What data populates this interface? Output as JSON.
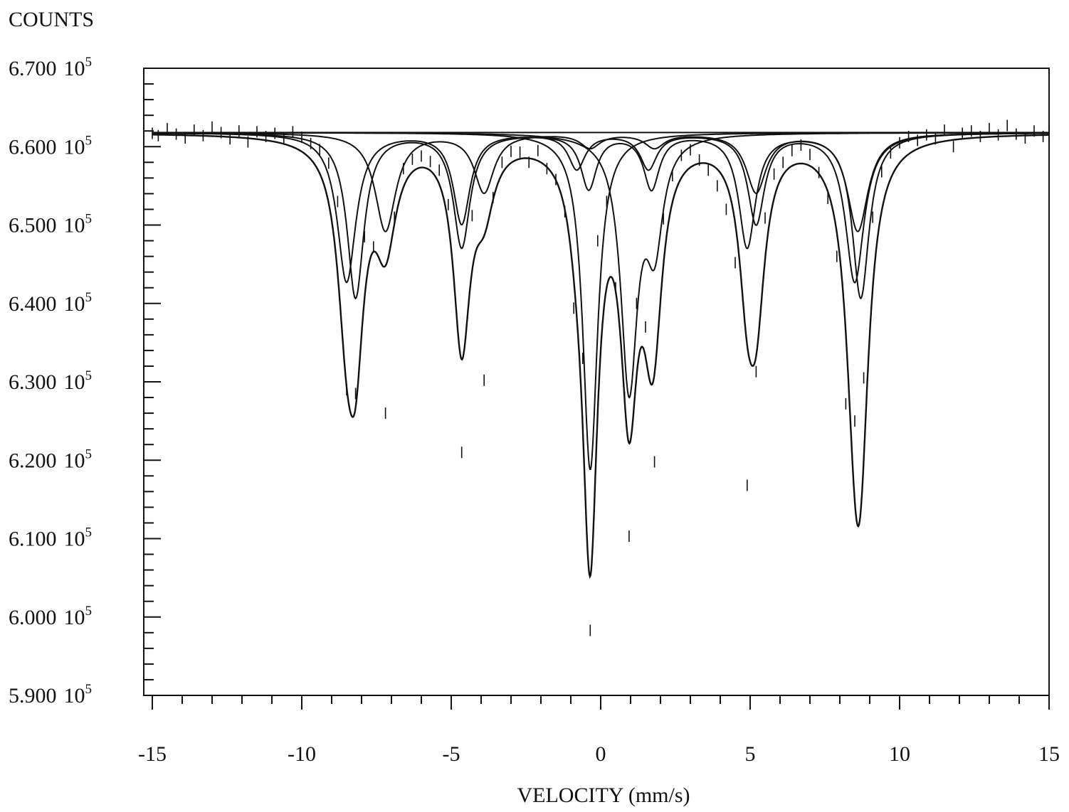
{
  "chart_data": {
    "type": "line",
    "title": "",
    "ylabel": "COUNTS",
    "xlabel": "VELOCITY (mm/s)",
    "xlim": [
      -15,
      15
    ],
    "ylim": [
      590000,
      670000
    ],
    "grid": false,
    "x_ticks": [
      {
        "value": -15,
        "label": "-15"
      },
      {
        "value": -10,
        "label": "-10"
      },
      {
        "value": -5,
        "label": "-5"
      },
      {
        "value": 0,
        "label": "0"
      },
      {
        "value": 5,
        "label": "5"
      },
      {
        "value": 10,
        "label": "10"
      },
      {
        "value": 15,
        "label": "15"
      }
    ],
    "y_ticks": [
      {
        "value": 670000,
        "mantissa": "6.700",
        "base": "10",
        "exp": "5"
      },
      {
        "value": 660000,
        "mantissa": "6.600",
        "base": "10",
        "exp": "5"
      },
      {
        "value": 650000,
        "mantissa": "6.500",
        "base": "10",
        "exp": "5"
      },
      {
        "value": 640000,
        "mantissa": "6.400",
        "base": "10",
        "exp": "5"
      },
      {
        "value": 630000,
        "mantissa": "6.300",
        "base": "10",
        "exp": "5"
      },
      {
        "value": 620000,
        "mantissa": "6.200",
        "base": "10",
        "exp": "5"
      },
      {
        "value": 610000,
        "mantissa": "6.100",
        "base": "10",
        "exp": "5"
      },
      {
        "value": 600000,
        "mantissa": "6.000",
        "base": "10",
        "exp": "5"
      },
      {
        "value": 590000,
        "mantissa": "5.900",
        "base": "10",
        "exp": "5"
      }
    ],
    "baseline": 661800,
    "series": [
      {
        "lines": [
          {
            "x": -8.5,
            "depth": 19000,
            "width": 0.38
          },
          {
            "x": -4.65,
            "depth": 11500,
            "width": 0.34
          },
          {
            "x": -0.8,
            "depth": 4500,
            "width": 0.34
          },
          {
            "x": 1.6,
            "depth": 4500,
            "width": 0.34
          },
          {
            "x": 5.2,
            "depth": 11500,
            "width": 0.34
          },
          {
            "x": 8.5,
            "depth": 19000,
            "width": 0.38
          }
        ]
      },
      {
        "lines": [
          {
            "x": -8.2,
            "depth": 21000,
            "width": 0.34
          },
          {
            "x": -4.65,
            "depth": 14500,
            "width": 0.34
          },
          {
            "x": -0.4,
            "depth": 7000,
            "width": 0.32
          },
          {
            "x": 1.7,
            "depth": 7000,
            "width": 0.32
          },
          {
            "x": 4.9,
            "depth": 14500,
            "width": 0.34
          },
          {
            "x": 8.7,
            "depth": 21000,
            "width": 0.34
          }
        ]
      },
      {
        "lines": [
          {
            "x": -7.2,
            "depth": 12500,
            "width": 0.42
          },
          {
            "x": -3.9,
            "depth": 7500,
            "width": 0.4
          },
          {
            "x": -0.35,
            "depth": 1800,
            "width": 0.4
          },
          {
            "x": 1.8,
            "depth": 1800,
            "width": 0.4
          },
          {
            "x": 5.2,
            "depth": 7500,
            "width": 0.4
          },
          {
            "x": 8.6,
            "depth": 12500,
            "width": 0.42
          }
        ]
      },
      {
        "lines": [
          {
            "x": -0.35,
            "depth": 43000,
            "width": 0.3
          }
        ]
      },
      {
        "lines": [
          {
            "x": 0.95,
            "depth": 32000,
            "width": 0.34
          },
          {
            "x": 1.8,
            "depth": 13000,
            "width": 0.34
          }
        ]
      }
    ],
    "scatter": [
      {
        "x": -15.0,
        "y": 661700
      },
      {
        "x": -14.8,
        "y": 661400
      },
      {
        "x": -14.5,
        "y": 662300
      },
      {
        "x": -14.2,
        "y": 661600
      },
      {
        "x": -13.9,
        "y": 661100
      },
      {
        "x": -13.6,
        "y": 662100
      },
      {
        "x": -13.3,
        "y": 661400
      },
      {
        "x": -13.0,
        "y": 662500
      },
      {
        "x": -12.7,
        "y": 661800
      },
      {
        "x": -12.4,
        "y": 661000
      },
      {
        "x": -12.1,
        "y": 662000
      },
      {
        "x": -11.8,
        "y": 660600
      },
      {
        "x": -11.5,
        "y": 661900
      },
      {
        "x": -11.2,
        "y": 661300
      },
      {
        "x": -10.9,
        "y": 661700
      },
      {
        "x": -10.6,
        "y": 661000
      },
      {
        "x": -10.3,
        "y": 661900
      },
      {
        "x": -10.0,
        "y": 661200
      },
      {
        "x": -9.7,
        "y": 660400
      },
      {
        "x": -9.4,
        "y": 659600
      },
      {
        "x": -9.1,
        "y": 657900
      },
      {
        "x": -8.8,
        "y": 653000
      },
      {
        "x": -8.5,
        "y": 629000
      },
      {
        "x": -8.2,
        "y": 628500
      },
      {
        "x": -7.9,
        "y": 648500
      },
      {
        "x": -7.6,
        "y": 647200
      },
      {
        "x": -7.2,
        "y": 626000
      },
      {
        "x": -6.9,
        "y": 651000
      },
      {
        "x": -6.6,
        "y": 657200
      },
      {
        "x": -6.3,
        "y": 658400
      },
      {
        "x": -6.0,
        "y": 658800
      },
      {
        "x": -5.7,
        "y": 658100
      },
      {
        "x": -5.4,
        "y": 657000
      },
      {
        "x": -5.1,
        "y": 652600
      },
      {
        "x": -4.65,
        "y": 621000
      },
      {
        "x": -4.3,
        "y": 651200
      },
      {
        "x": -3.9,
        "y": 630200
      },
      {
        "x": -3.6,
        "y": 653500
      },
      {
        "x": -3.3,
        "y": 658000
      },
      {
        "x": -3.0,
        "y": 659400
      },
      {
        "x": -2.7,
        "y": 659300
      },
      {
        "x": -2.4,
        "y": 658000
      },
      {
        "x": -2.1,
        "y": 659500
      },
      {
        "x": -1.8,
        "y": 657200
      },
      {
        "x": -1.5,
        "y": 655800
      },
      {
        "x": -1.2,
        "y": 651700
      },
      {
        "x": -0.9,
        "y": 639400
      },
      {
        "x": -0.6,
        "y": 633000
      },
      {
        "x": -0.35,
        "y": 598300
      },
      {
        "x": -0.1,
        "y": 648000
      },
      {
        "x": 0.2,
        "y": 653000
      },
      {
        "x": 0.5,
        "y": 642000
      },
      {
        "x": 0.8,
        "y": 628000
      },
      {
        "x": 0.95,
        "y": 610300
      },
      {
        "x": 1.2,
        "y": 640000
      },
      {
        "x": 1.5,
        "y": 637000
      },
      {
        "x": 1.8,
        "y": 619800
      },
      {
        "x": 2.1,
        "y": 650800
      },
      {
        "x": 2.4,
        "y": 656300
      },
      {
        "x": 2.7,
        "y": 658900
      },
      {
        "x": 3.0,
        "y": 659600
      },
      {
        "x": 3.3,
        "y": 658300
      },
      {
        "x": 3.6,
        "y": 657000
      },
      {
        "x": 3.9,
        "y": 655000
      },
      {
        "x": 4.2,
        "y": 652000
      },
      {
        "x": 4.5,
        "y": 645200
      },
      {
        "x": 4.9,
        "y": 616800
      },
      {
        "x": 5.2,
        "y": 631300
      },
      {
        "x": 5.5,
        "y": 650900
      },
      {
        "x": 5.8,
        "y": 656500
      },
      {
        "x": 6.1,
        "y": 658000
      },
      {
        "x": 6.4,
        "y": 659500
      },
      {
        "x": 6.7,
        "y": 660200
      },
      {
        "x": 7.0,
        "y": 659000
      },
      {
        "x": 7.3,
        "y": 656700
      },
      {
        "x": 7.6,
        "y": 653400
      },
      {
        "x": 7.9,
        "y": 646000
      },
      {
        "x": 8.2,
        "y": 627200
      },
      {
        "x": 8.5,
        "y": 625000
      },
      {
        "x": 8.8,
        "y": 630500
      },
      {
        "x": 9.1,
        "y": 651000
      },
      {
        "x": 9.4,
        "y": 656800
      },
      {
        "x": 9.7,
        "y": 659200
      },
      {
        "x": 10.0,
        "y": 660500
      },
      {
        "x": 10.3,
        "y": 661300
      },
      {
        "x": 10.6,
        "y": 660800
      },
      {
        "x": 10.9,
        "y": 661500
      },
      {
        "x": 11.2,
        "y": 661000
      },
      {
        "x": 11.5,
        "y": 662100
      },
      {
        "x": 11.8,
        "y": 660000
      },
      {
        "x": 12.1,
        "y": 661700
      },
      {
        "x": 12.4,
        "y": 662000
      },
      {
        "x": 12.7,
        "y": 661300
      },
      {
        "x": 13.0,
        "y": 662300
      },
      {
        "x": 13.3,
        "y": 661500
      },
      {
        "x": 13.6,
        "y": 662700
      },
      {
        "x": 13.9,
        "y": 661600
      },
      {
        "x": 14.2,
        "y": 661100
      },
      {
        "x": 14.5,
        "y": 662000
      },
      {
        "x": 14.8,
        "y": 661300
      },
      {
        "x": 15.0,
        "y": 661700
      }
    ]
  }
}
